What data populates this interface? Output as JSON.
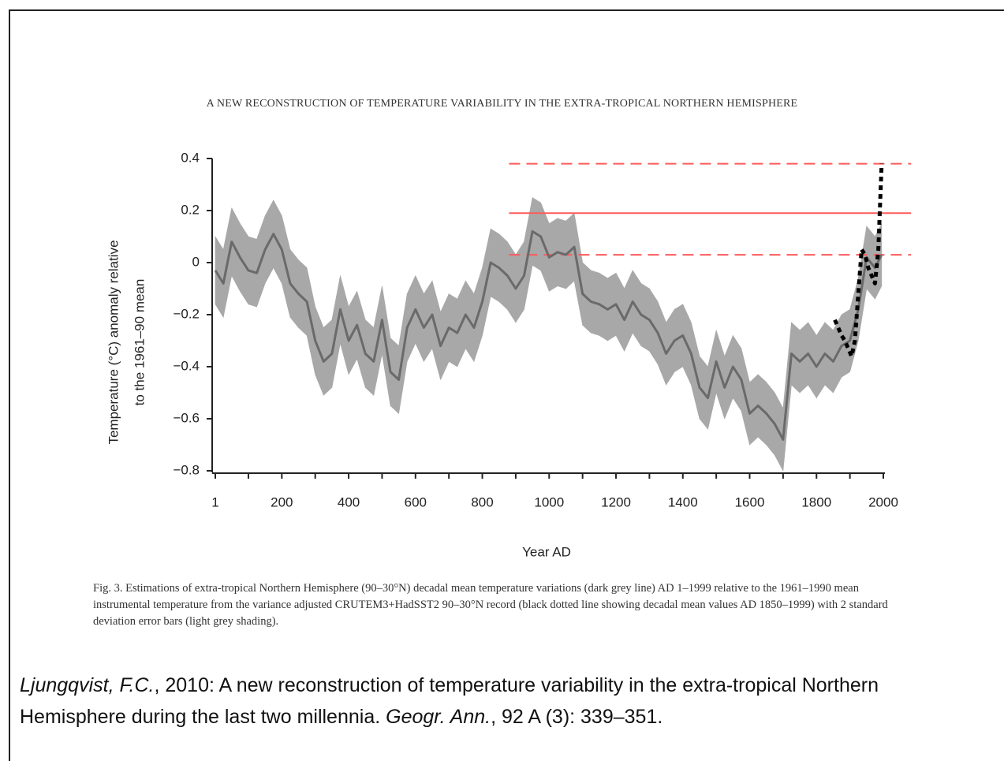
{
  "header": "A NEW RECONSTRUCTION OF TEMPERATURE VARIABILITY IN THE EXTRA-TROPICAL NORTHERN HEMISPHERE",
  "chart_data": {
    "type": "line",
    "x_label": "Year AD",
    "y_label": [
      "Temperature (°C) anomaly relative",
      "to the 1961–90 mean"
    ],
    "xlim": [
      1,
      2000
    ],
    "ylim": [
      -0.8,
      0.4
    ],
    "xticks": [
      1,
      200,
      400,
      600,
      800,
      1000,
      1200,
      1400,
      1600,
      1800,
      2000
    ],
    "minor_xticks": [
      100,
      300,
      500,
      700,
      900,
      1100,
      1300,
      1500,
      1700,
      1900
    ],
    "yticks": [
      0.4,
      0.2,
      0,
      {
        "value": -0.2,
        "label": "−0.2"
      },
      {
        "value": -0.4,
        "label": "−0.4"
      },
      {
        "value": -0.6,
        "label": "−0.6"
      },
      {
        "value": -0.8,
        "label": "−0.8"
      }
    ],
    "x": [
      1,
      25,
      50,
      75,
      100,
      125,
      150,
      175,
      200,
      225,
      250,
      275,
      300,
      325,
      350,
      375,
      400,
      425,
      450,
      475,
      500,
      525,
      550,
      575,
      600,
      625,
      650,
      675,
      700,
      725,
      750,
      775,
      800,
      825,
      850,
      875,
      900,
      925,
      950,
      975,
      1000,
      1025,
      1050,
      1075,
      1100,
      1125,
      1150,
      1175,
      1200,
      1225,
      1250,
      1275,
      1300,
      1325,
      1350,
      1375,
      1400,
      1425,
      1450,
      1475,
      1500,
      1525,
      1550,
      1575,
      1600,
      1625,
      1650,
      1675,
      1700,
      1725,
      1750,
      1775,
      1800,
      1825,
      1850,
      1875,
      1900,
      1925,
      1950,
      1975,
      1995
    ],
    "series": [
      {
        "color": "#6a6a6a",
        "band_color": "#a8a8a8",
        "values": [
          -0.03,
          -0.08,
          0.08,
          0.02,
          -0.03,
          -0.04,
          0.05,
          0.11,
          0.05,
          -0.08,
          -0.12,
          -0.15,
          -0.3,
          -0.38,
          -0.35,
          -0.18,
          -0.3,
          -0.24,
          -0.35,
          -0.38,
          -0.22,
          -0.42,
          -0.45,
          -0.25,
          -0.18,
          -0.25,
          -0.2,
          -0.32,
          -0.25,
          -0.27,
          -0.2,
          -0.25,
          -0.15,
          0.0,
          -0.02,
          -0.05,
          -0.1,
          -0.05,
          0.12,
          0.1,
          0.02,
          0.04,
          0.03,
          0.06,
          -0.12,
          -0.15,
          -0.16,
          -0.18,
          -0.16,
          -0.22,
          -0.15,
          -0.2,
          -0.22,
          -0.27,
          -0.35,
          -0.3,
          -0.28,
          -0.35,
          -0.48,
          -0.52,
          -0.38,
          -0.48,
          -0.4,
          -0.45,
          -0.58,
          -0.55,
          -0.58,
          -0.62,
          -0.68,
          -0.35,
          -0.38,
          -0.35,
          -0.4,
          -0.35,
          -0.38,
          -0.32,
          -0.3,
          -0.18,
          0.02,
          -0.02,
          0.03
        ],
        "band_upper": [
          0.1,
          0.05,
          0.21,
          0.15,
          0.1,
          0.09,
          0.18,
          0.24,
          0.18,
          0.05,
          0.01,
          -0.02,
          -0.17,
          -0.25,
          -0.22,
          -0.05,
          -0.17,
          -0.11,
          -0.22,
          -0.25,
          -0.09,
          -0.29,
          -0.32,
          -0.12,
          -0.05,
          -0.12,
          -0.07,
          -0.19,
          -0.12,
          -0.14,
          -0.07,
          -0.12,
          -0.02,
          0.13,
          0.11,
          0.08,
          0.03,
          0.08,
          0.25,
          0.23,
          0.15,
          0.17,
          0.16,
          0.19,
          0.0,
          -0.03,
          -0.04,
          -0.06,
          -0.04,
          -0.1,
          -0.03,
          -0.08,
          -0.1,
          -0.15,
          -0.23,
          -0.18,
          -0.16,
          -0.23,
          -0.36,
          -0.4,
          -0.26,
          -0.36,
          -0.28,
          -0.33,
          -0.46,
          -0.43,
          -0.46,
          -0.5,
          -0.56,
          -0.23,
          -0.26,
          -0.23,
          -0.28,
          -0.23,
          -0.26,
          -0.2,
          -0.18,
          -0.06,
          0.14,
          0.1,
          0.15
        ],
        "band_lower": [
          -0.16,
          -0.21,
          -0.05,
          -0.11,
          -0.16,
          -0.17,
          -0.08,
          -0.02,
          -0.08,
          -0.21,
          -0.25,
          -0.28,
          -0.43,
          -0.51,
          -0.48,
          -0.31,
          -0.43,
          -0.37,
          -0.48,
          -0.51,
          -0.35,
          -0.55,
          -0.58,
          -0.38,
          -0.31,
          -0.38,
          -0.33,
          -0.45,
          -0.38,
          -0.4,
          -0.33,
          -0.38,
          -0.28,
          -0.13,
          -0.15,
          -0.18,
          -0.23,
          -0.18,
          -0.01,
          -0.03,
          -0.11,
          -0.09,
          -0.1,
          -0.07,
          -0.24,
          -0.27,
          -0.28,
          -0.3,
          -0.28,
          -0.34,
          -0.27,
          -0.32,
          -0.34,
          -0.39,
          -0.47,
          -0.42,
          -0.4,
          -0.47,
          -0.6,
          -0.64,
          -0.5,
          -0.6,
          -0.52,
          -0.57,
          -0.7,
          -0.67,
          -0.7,
          -0.74,
          -0.8,
          -0.47,
          -0.5,
          -0.47,
          -0.52,
          -0.47,
          -0.5,
          -0.44,
          -0.42,
          -0.3,
          -0.1,
          -0.14,
          -0.09
        ]
      },
      {
        "color": "#000000",
        "dotted": true,
        "x": [
          1855,
          1865,
          1875,
          1885,
          1895,
          1905,
          1915,
          1925,
          1935,
          1945,
          1955,
          1965,
          1975,
          1985,
          1995
        ],
        "values": [
          -0.22,
          -0.25,
          -0.28,
          -0.3,
          -0.33,
          -0.36,
          -0.3,
          -0.12,
          0.05,
          0.03,
          -0.02,
          -0.05,
          -0.08,
          0.05,
          0.38
        ]
      }
    ],
    "hlines": [
      {
        "value": 0.38,
        "dashed": true
      },
      {
        "value": 0.19,
        "dashed": false
      },
      {
        "value": 0.03,
        "dashed": true
      }
    ],
    "hline_color": "#ff5a5a",
    "hline_xrange": [
      880,
      2083
    ]
  },
  "caption": "Fig. 3. Estimations of extra-tropical Northern Hemisphere (90–30°N) decadal mean temperature variations (dark grey line) AD 1–1999 relative to the 1961–1990 mean instrumental temperature from the variance adjusted CRUTEM3+HadSST2 90–30°N record (black dotted line showing decadal mean values AD 1850–1999) with 2 standard deviation error bars (light grey shading).",
  "citation": {
    "author": "Ljungqvist, F.C.",
    "text": ", 2010: A new reconstruction of temperature variability in the extra-tropical Northern Hemisphere during the last two millennia. ",
    "journal": "Geogr. Ann.",
    "details": ", 92 A (3): 339–351."
  }
}
